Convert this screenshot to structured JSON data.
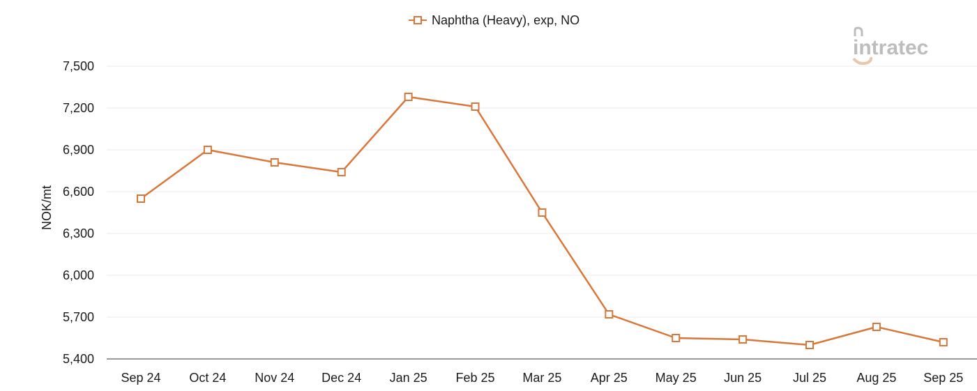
{
  "logo": {
    "text": "intratec",
    "accent_color": "#e8c7ad",
    "text_color": "#bdbdbd"
  },
  "chart_data": {
    "type": "line",
    "categories": [
      "Sep 24",
      "Oct 24",
      "Nov 24",
      "Dec 24",
      "Jan 25",
      "Feb 25",
      "Mar 25",
      "Apr 25",
      "May 25",
      "Jun 25",
      "Jul 25",
      "Aug 25",
      "Sep 25"
    ],
    "series": [
      {
        "name": "Naphtha (Heavy), exp, NO",
        "values": [
          6550,
          6900,
          6810,
          6740,
          7280,
          7210,
          6450,
          5720,
          5550,
          5540,
          5500,
          5630,
          5520
        ],
        "color": "#d9773b",
        "marker": "square-open"
      }
    ],
    "title": "",
    "xlabel": "",
    "ylabel": "NOK/mt",
    "ylim": [
      5400,
      7500
    ],
    "yticks": [
      5400,
      5700,
      6000,
      6300,
      6600,
      6900,
      7200,
      7500
    ],
    "ytick_labels": [
      "5,400",
      "5,700",
      "6,000",
      "6,300",
      "6,600",
      "6,900",
      "7,200",
      "7,500"
    ],
    "grid": true,
    "legend_position": "top-center"
  }
}
